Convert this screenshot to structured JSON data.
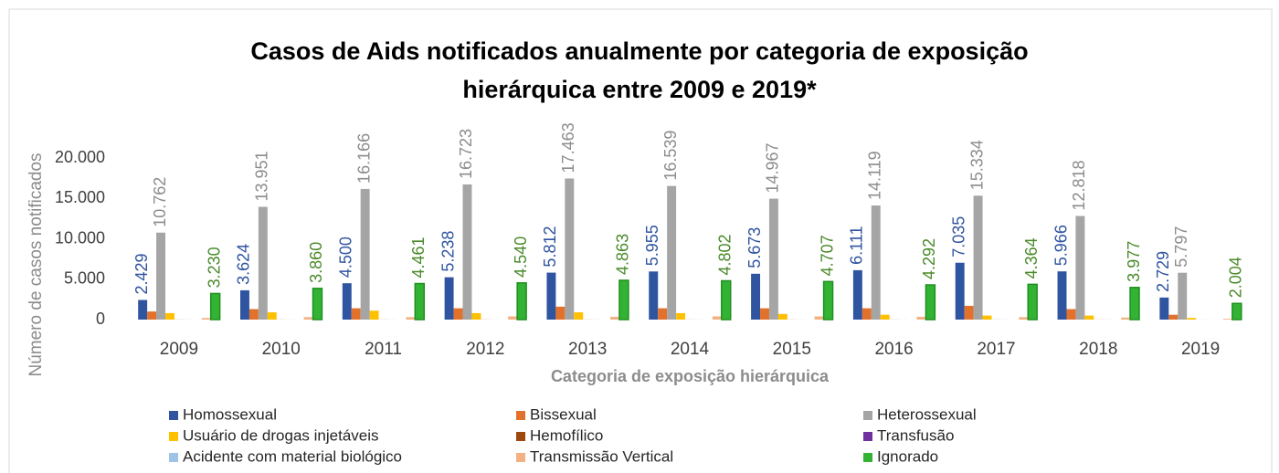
{
  "chart_data": {
    "type": "bar",
    "title": "Casos de Aids notificados anualmente por categoria de exposição",
    "subtitle": "hierárquica entre 2009 e 2019*",
    "x_label": "Categoria de exposição hierárquica",
    "y_label": "Número de casos notificados",
    "categories": [
      "2009",
      "2010",
      "2011",
      "2012",
      "2013",
      "2014",
      "2015",
      "2016",
      "2017",
      "2018",
      "2019"
    ],
    "ylim": [
      0,
      20000
    ],
    "yticks": [
      0,
      {
        "value": 5000,
        "label": "5.000"
      },
      {
        "value": 10000,
        "label": "10.000"
      },
      {
        "value": 15000,
        "label": "15.000"
      },
      {
        "value": 20000,
        "label": "20.000"
      }
    ],
    "grid": false,
    "legend": "bottom",
    "series": [
      {
        "name": "Homossexual",
        "color": "#2f54a0",
        "label_color": "#2f54a0",
        "values": [
          2429,
          3624,
          4500,
          5238,
          5812,
          5955,
          5673,
          6111,
          7035,
          5966,
          2729
        ],
        "value_labels": [
          "2.429",
          "3.624",
          "4.500",
          "5.238",
          "5.812",
          "5.955",
          "5.673",
          "6.111",
          "7.035",
          "5.966",
          "2.729"
        ]
      },
      {
        "name": "Bissexual",
        "color": "#e2712b",
        "values": [
          1000,
          1300,
          1400,
          1400,
          1600,
          1400,
          1400,
          1400,
          1700,
          1300,
          600
        ]
      },
      {
        "name": "Heterossexual",
        "color": "#a5a5a5",
        "label_color": "#8c8c8c",
        "values": [
          10762,
          13951,
          16166,
          16723,
          17463,
          16539,
          14967,
          14119,
          15334,
          12818,
          5797
        ],
        "value_labels": [
          "10.762",
          "13.951",
          "16.166",
          "16.723",
          "17.463",
          "16.539",
          "14.967",
          "14.119",
          "15.334",
          "12.818",
          "5.797"
        ]
      },
      {
        "name": "Usuário de drogas injetáveis",
        "color": "#ffc000",
        "values": [
          800,
          900,
          1100,
          800,
          900,
          800,
          700,
          600,
          500,
          500,
          200
        ]
      },
      {
        "name": "Hemofílico",
        "color": "#9e480e",
        "values": [
          10,
          10,
          10,
          10,
          10,
          10,
          10,
          10,
          10,
          10,
          5
        ]
      },
      {
        "name": "Transfusão",
        "color": "#7030a0",
        "values": [
          5,
          5,
          5,
          5,
          5,
          5,
          5,
          5,
          5,
          5,
          2
        ]
      },
      {
        "name": "Acidente com material biológico",
        "color": "#9dc3e6",
        "values": [
          0,
          0,
          0,
          0,
          0,
          0,
          0,
          0,
          0,
          0,
          0
        ]
      },
      {
        "name": "Transmissão Vertical",
        "color": "#f4b183",
        "values": [
          200,
          300,
          300,
          400,
          350,
          400,
          400,
          350,
          300,
          250,
          100
        ]
      },
      {
        "name": "Ignorado",
        "color": "#33b333",
        "edgecolor": "#1f8f1f",
        "label_color": "#4a8a2a",
        "values": [
          3230,
          3860,
          4461,
          4540,
          4863,
          4802,
          4707,
          4292,
          4364,
          3977,
          2004
        ],
        "value_labels": [
          "3.230",
          "3.860",
          "4.461",
          "4.540",
          "4.863",
          "4.802",
          "4.707",
          "4.292",
          "4.364",
          "3.977",
          "2.004"
        ]
      }
    ]
  }
}
